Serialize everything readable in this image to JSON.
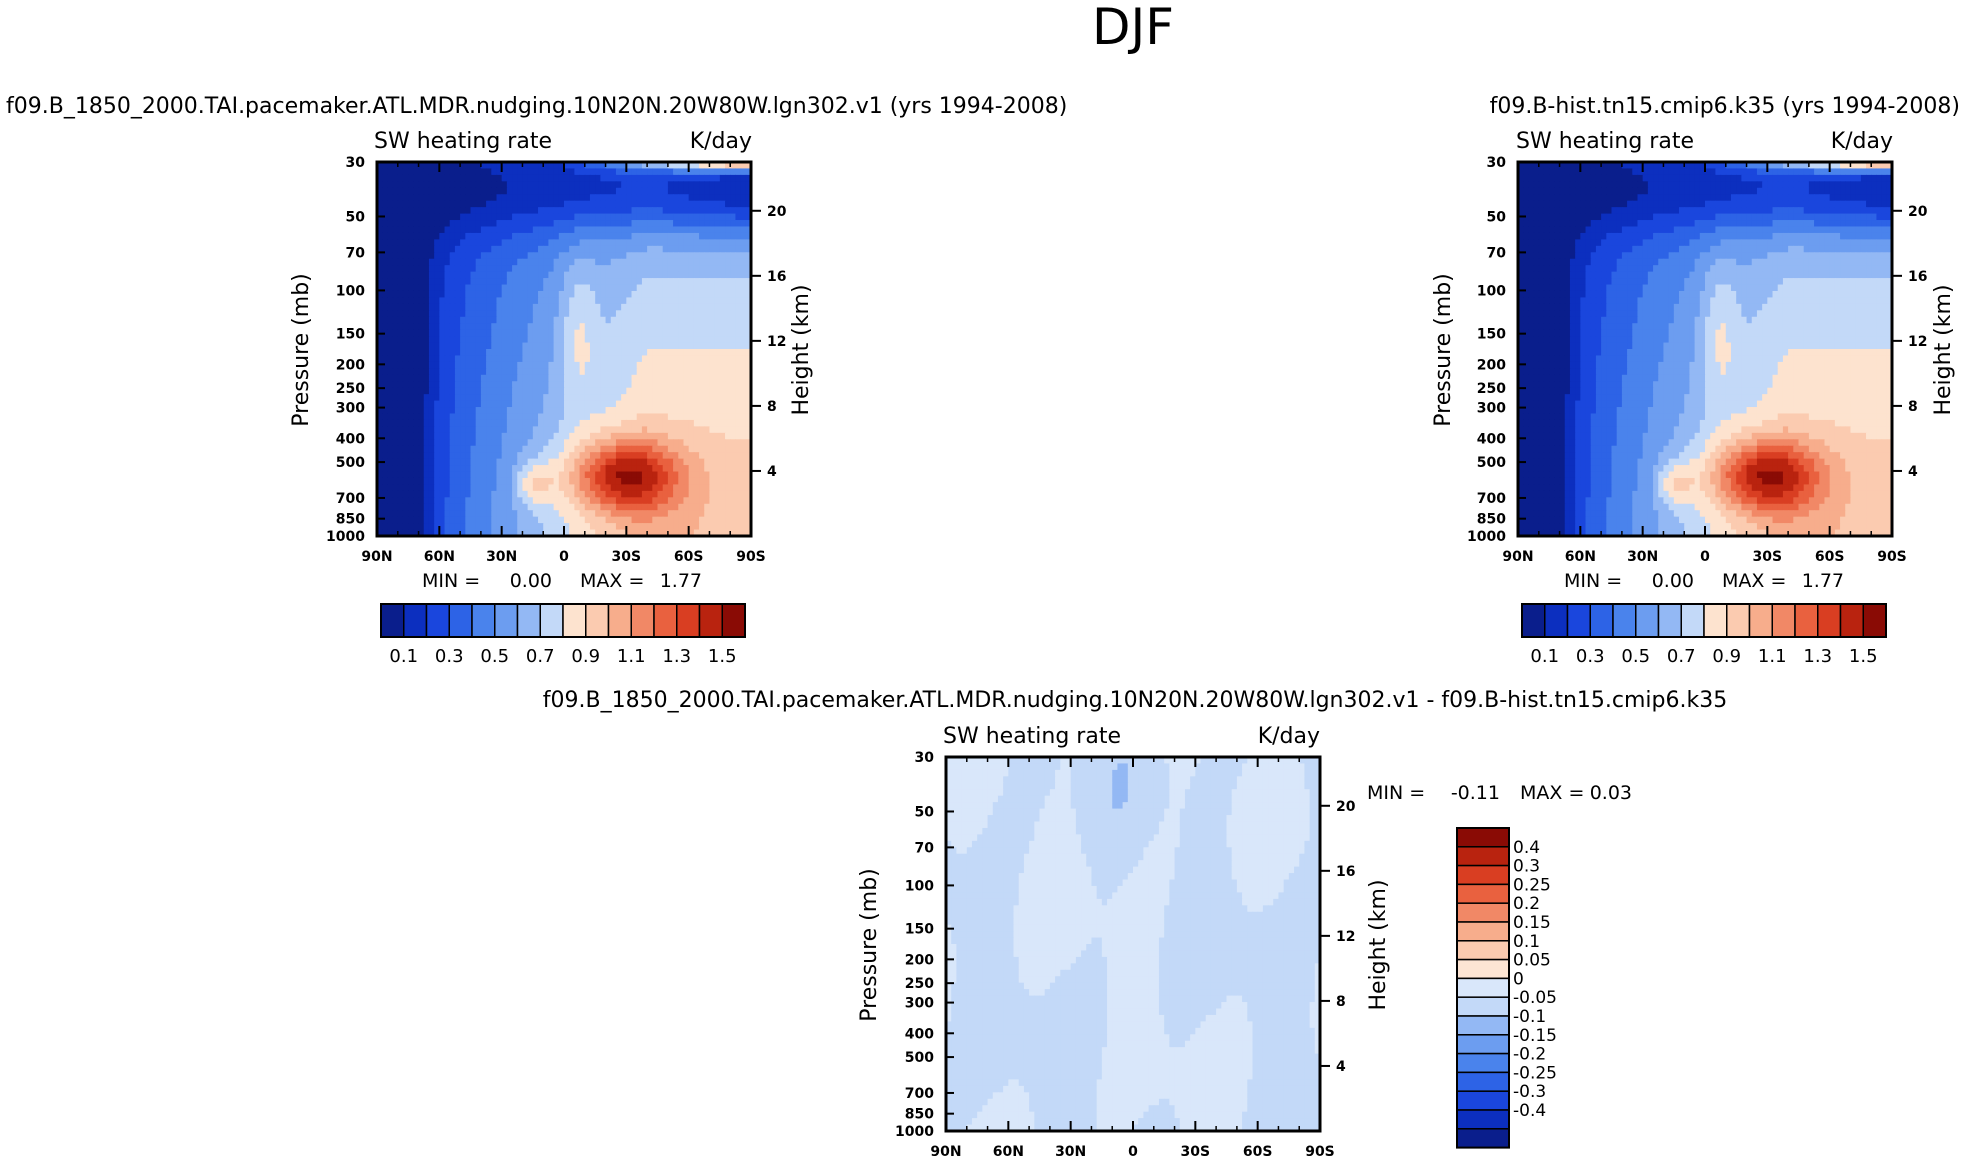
{
  "figure": {
    "title": "DJF",
    "palette_full": [
      "#0a1e8c",
      "#0c2fbf",
      "#1a46dd",
      "#2d63e6",
      "#4a83ec",
      "#6c9df0",
      "#93b8f4",
      "#c3d9f8",
      "#fde3cf",
      "#fbcbb0",
      "#f7ad8c",
      "#f18866",
      "#e9613f",
      "#d93e22",
      "#b9230f",
      "#8a0b05"
    ],
    "palette_diff": [
      "#0a1e8c",
      "#0c2fbf",
      "#1a46dd",
      "#2d63e6",
      "#4a83ec",
      "#6c9df0",
      "#93b8f4",
      "#c3d9f8",
      "#d9e7fa",
      "#fde5d4",
      "#fbcbb0",
      "#f7ad8c",
      "#f18866",
      "#e9613f",
      "#d93e22",
      "#b9230f",
      "#8a0b05"
    ]
  },
  "chart_data": [
    {
      "type": "heatmap",
      "title": "f09.B_1850_2000.TAI.pacemaker.ATL.MDR.nudging.10N20N.20W80W.lgn302.v1 (yrs 1994-2008)",
      "variable": "SW heating rate",
      "units": "K/day",
      "xlabel": "",
      "ylabel": "Pressure (mb)",
      "y2label": "Height (km)",
      "x_ticks": [
        "90N",
        "60N",
        "30N",
        "0",
        "30S",
        "60S",
        "90S"
      ],
      "y_ticks": [
        30,
        50,
        70,
        100,
        150,
        200,
        250,
        300,
        400,
        500,
        700,
        850,
        1000
      ],
      "y2_ticks": [
        20,
        16,
        12,
        8,
        4
      ],
      "xlim": [
        90,
        -90
      ],
      "ylim": [
        1000,
        30
      ],
      "min_label": "MIN =",
      "min": "0.00",
      "max_label": "MAX =",
      "max": "1.77",
      "levels": [
        0.1,
        0.2,
        0.3,
        0.4,
        0.5,
        0.6,
        0.7,
        0.8,
        0.9,
        1.0,
        1.1,
        1.2,
        1.3,
        1.4,
        1.5
      ],
      "colorbar_labels": [
        "0.1",
        "0.3",
        "0.5",
        "0.7",
        "0.9",
        "1.1",
        "1.3",
        "1.5"
      ]
    },
    {
      "type": "heatmap",
      "title": "f09.B-hist.tn15.cmip6.k35 (yrs 1994-2008)",
      "variable": "SW heating rate",
      "units": "K/day",
      "xlabel": "",
      "ylabel": "Pressure (mb)",
      "y2label": "Height (km)",
      "x_ticks": [
        "90N",
        "60N",
        "30N",
        "0",
        "30S",
        "60S",
        "90S"
      ],
      "y_ticks": [
        30,
        50,
        70,
        100,
        150,
        200,
        250,
        300,
        400,
        500,
        700,
        850,
        1000
      ],
      "y2_ticks": [
        20,
        16,
        12,
        8,
        4
      ],
      "xlim": [
        90,
        -90
      ],
      "ylim": [
        1000,
        30
      ],
      "min_label": "MIN =",
      "min": "0.00",
      "max_label": "MAX =",
      "max": "1.77",
      "levels": [
        0.1,
        0.2,
        0.3,
        0.4,
        0.5,
        0.6,
        0.7,
        0.8,
        0.9,
        1.0,
        1.1,
        1.2,
        1.3,
        1.4,
        1.5
      ],
      "colorbar_labels": [
        "0.1",
        "0.3",
        "0.5",
        "0.7",
        "0.9",
        "1.1",
        "1.3",
        "1.5"
      ]
    },
    {
      "type": "heatmap",
      "title": "f09.B_1850_2000.TAI.pacemaker.ATL.MDR.nudging.10N20N.20W80W.lgn302.v1 - f09.B-hist.tn15.cmip6.k35",
      "variable": "SW heating rate",
      "units": "K/day",
      "xlabel": "",
      "ylabel": "Pressure (mb)",
      "y2label": "Height (km)",
      "x_ticks": [
        "90N",
        "60N",
        "30N",
        "0",
        "30S",
        "60S",
        "90S"
      ],
      "y_ticks": [
        30,
        50,
        70,
        100,
        150,
        200,
        250,
        300,
        400,
        500,
        700,
        850,
        1000
      ],
      "y2_ticks": [
        20,
        16,
        12,
        8,
        4
      ],
      "xlim": [
        90,
        -90
      ],
      "ylim": [
        1000,
        30
      ],
      "min_label": "MIN =",
      "min": "-0.11",
      "max_label": "MAX =",
      "max": "0.03",
      "levels": [
        -0.4,
        -0.3,
        -0.25,
        -0.2,
        -0.15,
        -0.1,
        -0.05,
        0,
        0.05,
        0.1,
        0.15,
        0.2,
        0.25,
        0.3,
        0.4
      ],
      "colorbar_labels": [
        "0.4",
        "0.3",
        "0.25",
        "0.2",
        "0.15",
        "0.1",
        "0.05",
        "0",
        "-0.05",
        "-0.1",
        "-0.15",
        "-0.2",
        "-0.25",
        "-0.3",
        "-0.4"
      ]
    }
  ]
}
